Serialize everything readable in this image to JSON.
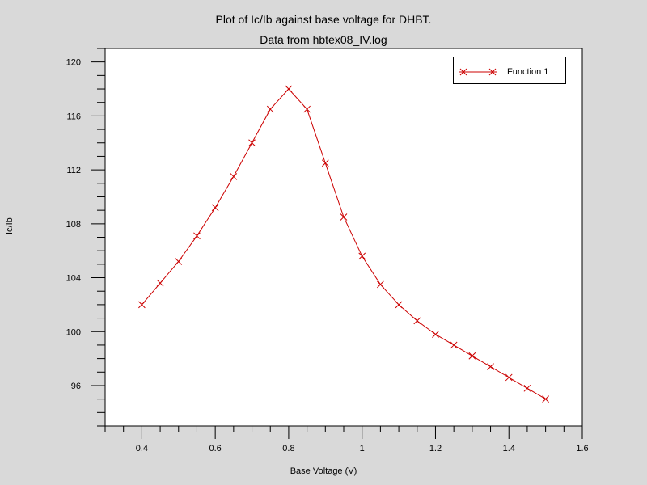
{
  "chart_data": {
    "type": "line",
    "title": "Plot of Ic/Ib against base voltage for DHBT.",
    "subtitle": "Data from hbtex08_IV.log",
    "xlabel": "Base Voltage (V)",
    "ylabel": "Ic/Ib",
    "xlim": [
      0.3,
      1.6
    ],
    "ylim": [
      93,
      121
    ],
    "x_ticks": [
      "0.4",
      "0.6",
      "0.8",
      "1",
      "1.2",
      "1.4",
      "1.6"
    ],
    "y_ticks": [
      "96",
      "100",
      "104",
      "108",
      "112",
      "116",
      "120"
    ],
    "grid": false,
    "legend_position": "top-right",
    "series": [
      {
        "name": "Function 1",
        "color": "#cc0000",
        "marker": "x",
        "x": [
          0.4,
          0.45,
          0.5,
          0.55,
          0.6,
          0.65,
          0.7,
          0.75,
          0.8,
          0.85,
          0.9,
          0.95,
          1.0,
          1.05,
          1.1,
          1.15,
          1.2,
          1.25,
          1.3,
          1.35,
          1.4,
          1.45,
          1.5
        ],
        "y": [
          102.0,
          103.6,
          105.2,
          107.1,
          109.2,
          111.5,
          114.0,
          116.5,
          118.0,
          116.5,
          112.5,
          108.5,
          105.6,
          103.5,
          102.0,
          100.8,
          99.8,
          99.0,
          98.2,
          97.4,
          96.6,
          95.8,
          95.0
        ]
      }
    ]
  }
}
